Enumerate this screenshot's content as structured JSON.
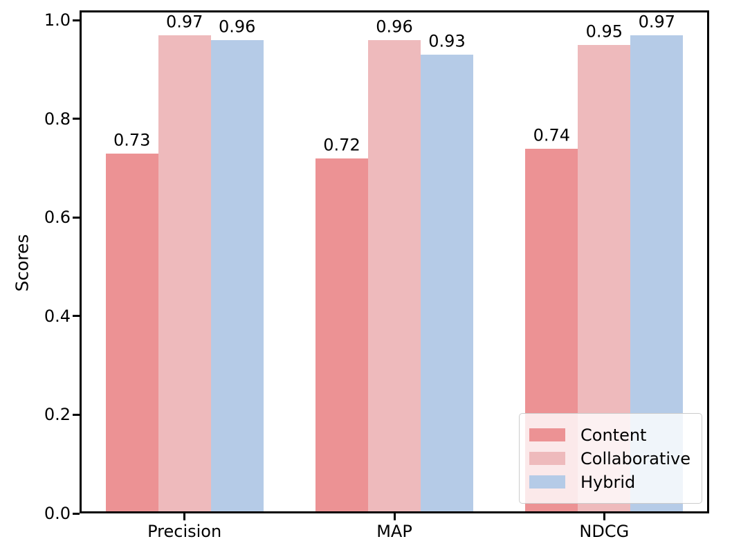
{
  "chart_data": {
    "type": "bar",
    "title": "",
    "xlabel": "",
    "ylabel": "Scores",
    "categories": [
      "Precision",
      "MAP",
      "NDCG"
    ],
    "series": [
      {
        "name": "Content",
        "color": "#EC9294",
        "values": [
          0.73,
          0.72,
          0.74
        ]
      },
      {
        "name": "Collaborative",
        "color": "#EEBABC",
        "values": [
          0.97,
          0.96,
          0.95
        ]
      },
      {
        "name": "Hybrid",
        "color": "#B5CBE7",
        "values": [
          0.96,
          0.93,
          0.97
        ]
      }
    ],
    "bar_value_labels": {
      "Precision": [
        "0.73",
        "0.97",
        "0.96"
      ],
      "MAP": [
        "0.72",
        "0.96",
        "0.93"
      ],
      "NDCG": [
        "0.74",
        "0.95",
        "0.97"
      ]
    },
    "ylim": [
      0,
      1.02
    ],
    "ytick_labels": [
      "0.0",
      "0.2",
      "0.4",
      "0.6",
      "0.8",
      "1.0"
    ],
    "grid": false,
    "legend": {
      "position": "lower right",
      "entries": [
        "Content",
        "Collaborative",
        "Hybrid"
      ]
    },
    "colors": {
      "spine": "#000000",
      "text": "#000000",
      "legend_border": "#cccccc",
      "legend_background_rgba": "rgba(255,255,255,0.8)",
      "figure_background": "#ffffff"
    }
  }
}
